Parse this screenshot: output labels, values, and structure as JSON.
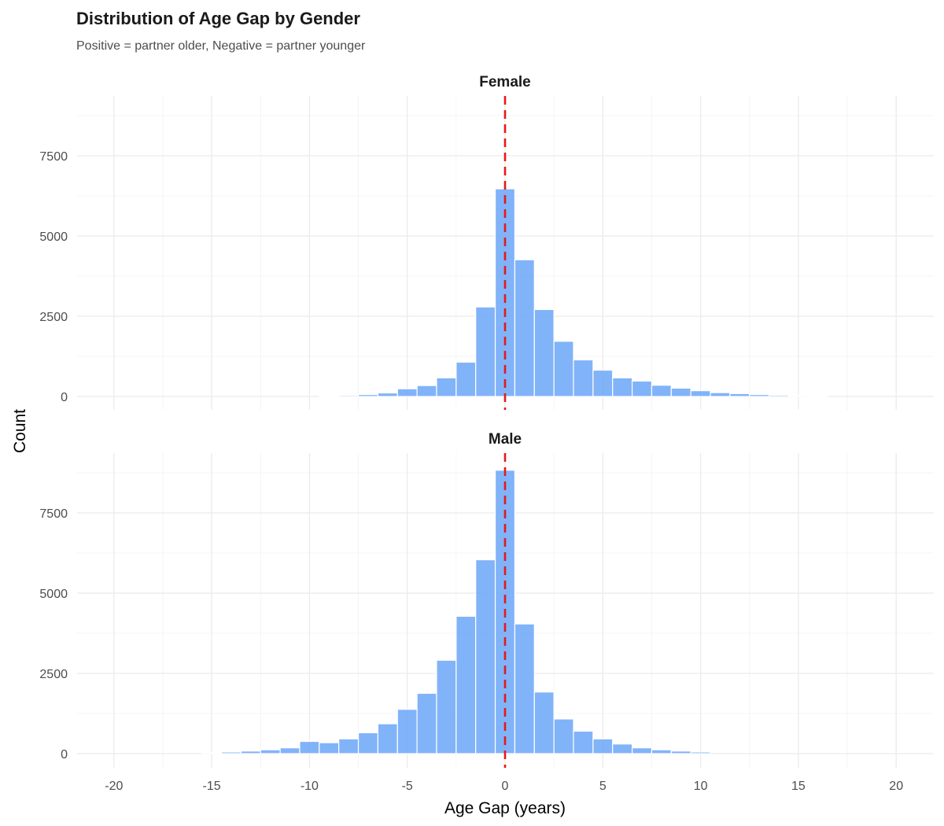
{
  "chart_data": {
    "type": "bar",
    "title": "Distribution of Age Gap by Gender",
    "subtitle": "Positive = partner older, Negative = partner younger",
    "xlabel": "Age Gap (years)",
    "ylabel": "Count",
    "xlim": [
      -21,
      21
    ],
    "ylim": [
      0,
      9200
    ],
    "x_ticks": [
      -20,
      -15,
      -10,
      -5,
      0,
      5,
      10,
      15,
      20
    ],
    "y_ticks": [
      0,
      2500,
      5000,
      7500
    ],
    "bin_width": 1,
    "reference_line": {
      "x": 0,
      "style": "dashed",
      "color": "#e31a1c"
    },
    "bar_color": "#6fa8f8",
    "facets": [
      {
        "name": "Female",
        "bin_centers": [
          -9,
          -8,
          -7,
          -6,
          -5,
          -4,
          -3,
          -2,
          -1,
          0,
          1,
          2,
          3,
          4,
          5,
          6,
          7,
          8,
          9,
          10,
          11,
          12,
          13,
          14,
          15,
          16
        ],
        "values": [
          20,
          35,
          60,
          110,
          240,
          340,
          580,
          1070,
          2790,
          6470,
          4260,
          2710,
          1720,
          1140,
          820,
          580,
          480,
          350,
          260,
          180,
          120,
          90,
          60,
          40,
          30,
          25
        ]
      },
      {
        "name": "Male",
        "bin_centers": [
          -15,
          -14,
          -13,
          -12,
          -11,
          -10,
          -9,
          -8,
          -7,
          -6,
          -5,
          -4,
          -3,
          -2,
          -1,
          0,
          1,
          2,
          3,
          4,
          5,
          6,
          7,
          8,
          9,
          10
        ],
        "values": [
          30,
          50,
          80,
          120,
          180,
          380,
          340,
          460,
          650,
          930,
          1380,
          1880,
          2910,
          4280,
          6040,
          8830,
          4040,
          1920,
          1080,
          700,
          460,
          300,
          180,
          120,
          80,
          50
        ]
      }
    ]
  }
}
